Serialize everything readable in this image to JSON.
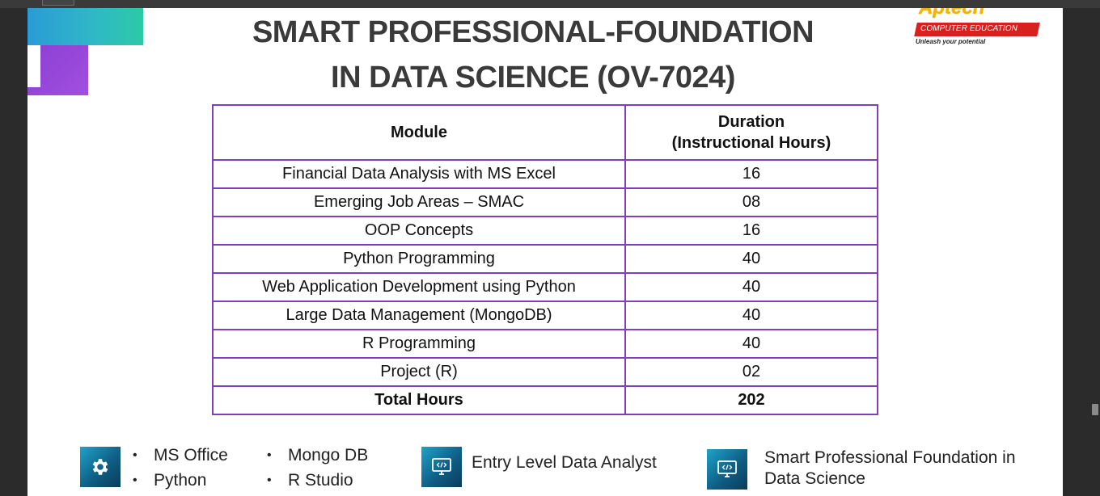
{
  "title": {
    "line1": "SMART PROFESSIONAL-FOUNDATION",
    "line2": "IN DATA SCIENCE (OV-7024)"
  },
  "logo": {
    "brand": "Aptech",
    "bar_text": "COMPUTER EDUCATION",
    "tagline": "Unleash your potential"
  },
  "table": {
    "headers": {
      "module": "Module",
      "duration_line1": "Duration",
      "duration_line2": "(Instructional Hours)"
    },
    "rows": [
      {
        "module": "Financial Data Analysis with MS Excel",
        "hours": "16"
      },
      {
        "module": "Emerging Job Areas – SMAC",
        "hours": "08"
      },
      {
        "module": "OOP Concepts",
        "hours": "16"
      },
      {
        "module": "Python Programming",
        "hours": "40"
      },
      {
        "module": "Web Application Development using Python",
        "hours": "40"
      },
      {
        "module": "Large Data Management (MongoDB)",
        "hours": "40"
      },
      {
        "module": "R Programming",
        "hours": "40"
      },
      {
        "module": "Project (R)",
        "hours": "02"
      }
    ],
    "total": {
      "label": "Total Hours",
      "hours": "202"
    }
  },
  "tools": {
    "icon": "gear-icon",
    "col1": [
      "MS Office",
      "Python"
    ],
    "col2": [
      "Mongo DB",
      "R Studio"
    ]
  },
  "job_role": {
    "icon": "monitor-code-icon",
    "text": "Entry Level Data Analyst"
  },
  "certification": {
    "icon": "monitor-code-icon",
    "line1": "Smart Professional Foundation in",
    "line2": "Data Science"
  },
  "colors": {
    "table_border": "#7f3fbf",
    "title_text": "#3a3a3a",
    "icon_bg": "#0f5f86",
    "logo_red": "#d8211f",
    "logo_yellow": "#f2b400"
  }
}
